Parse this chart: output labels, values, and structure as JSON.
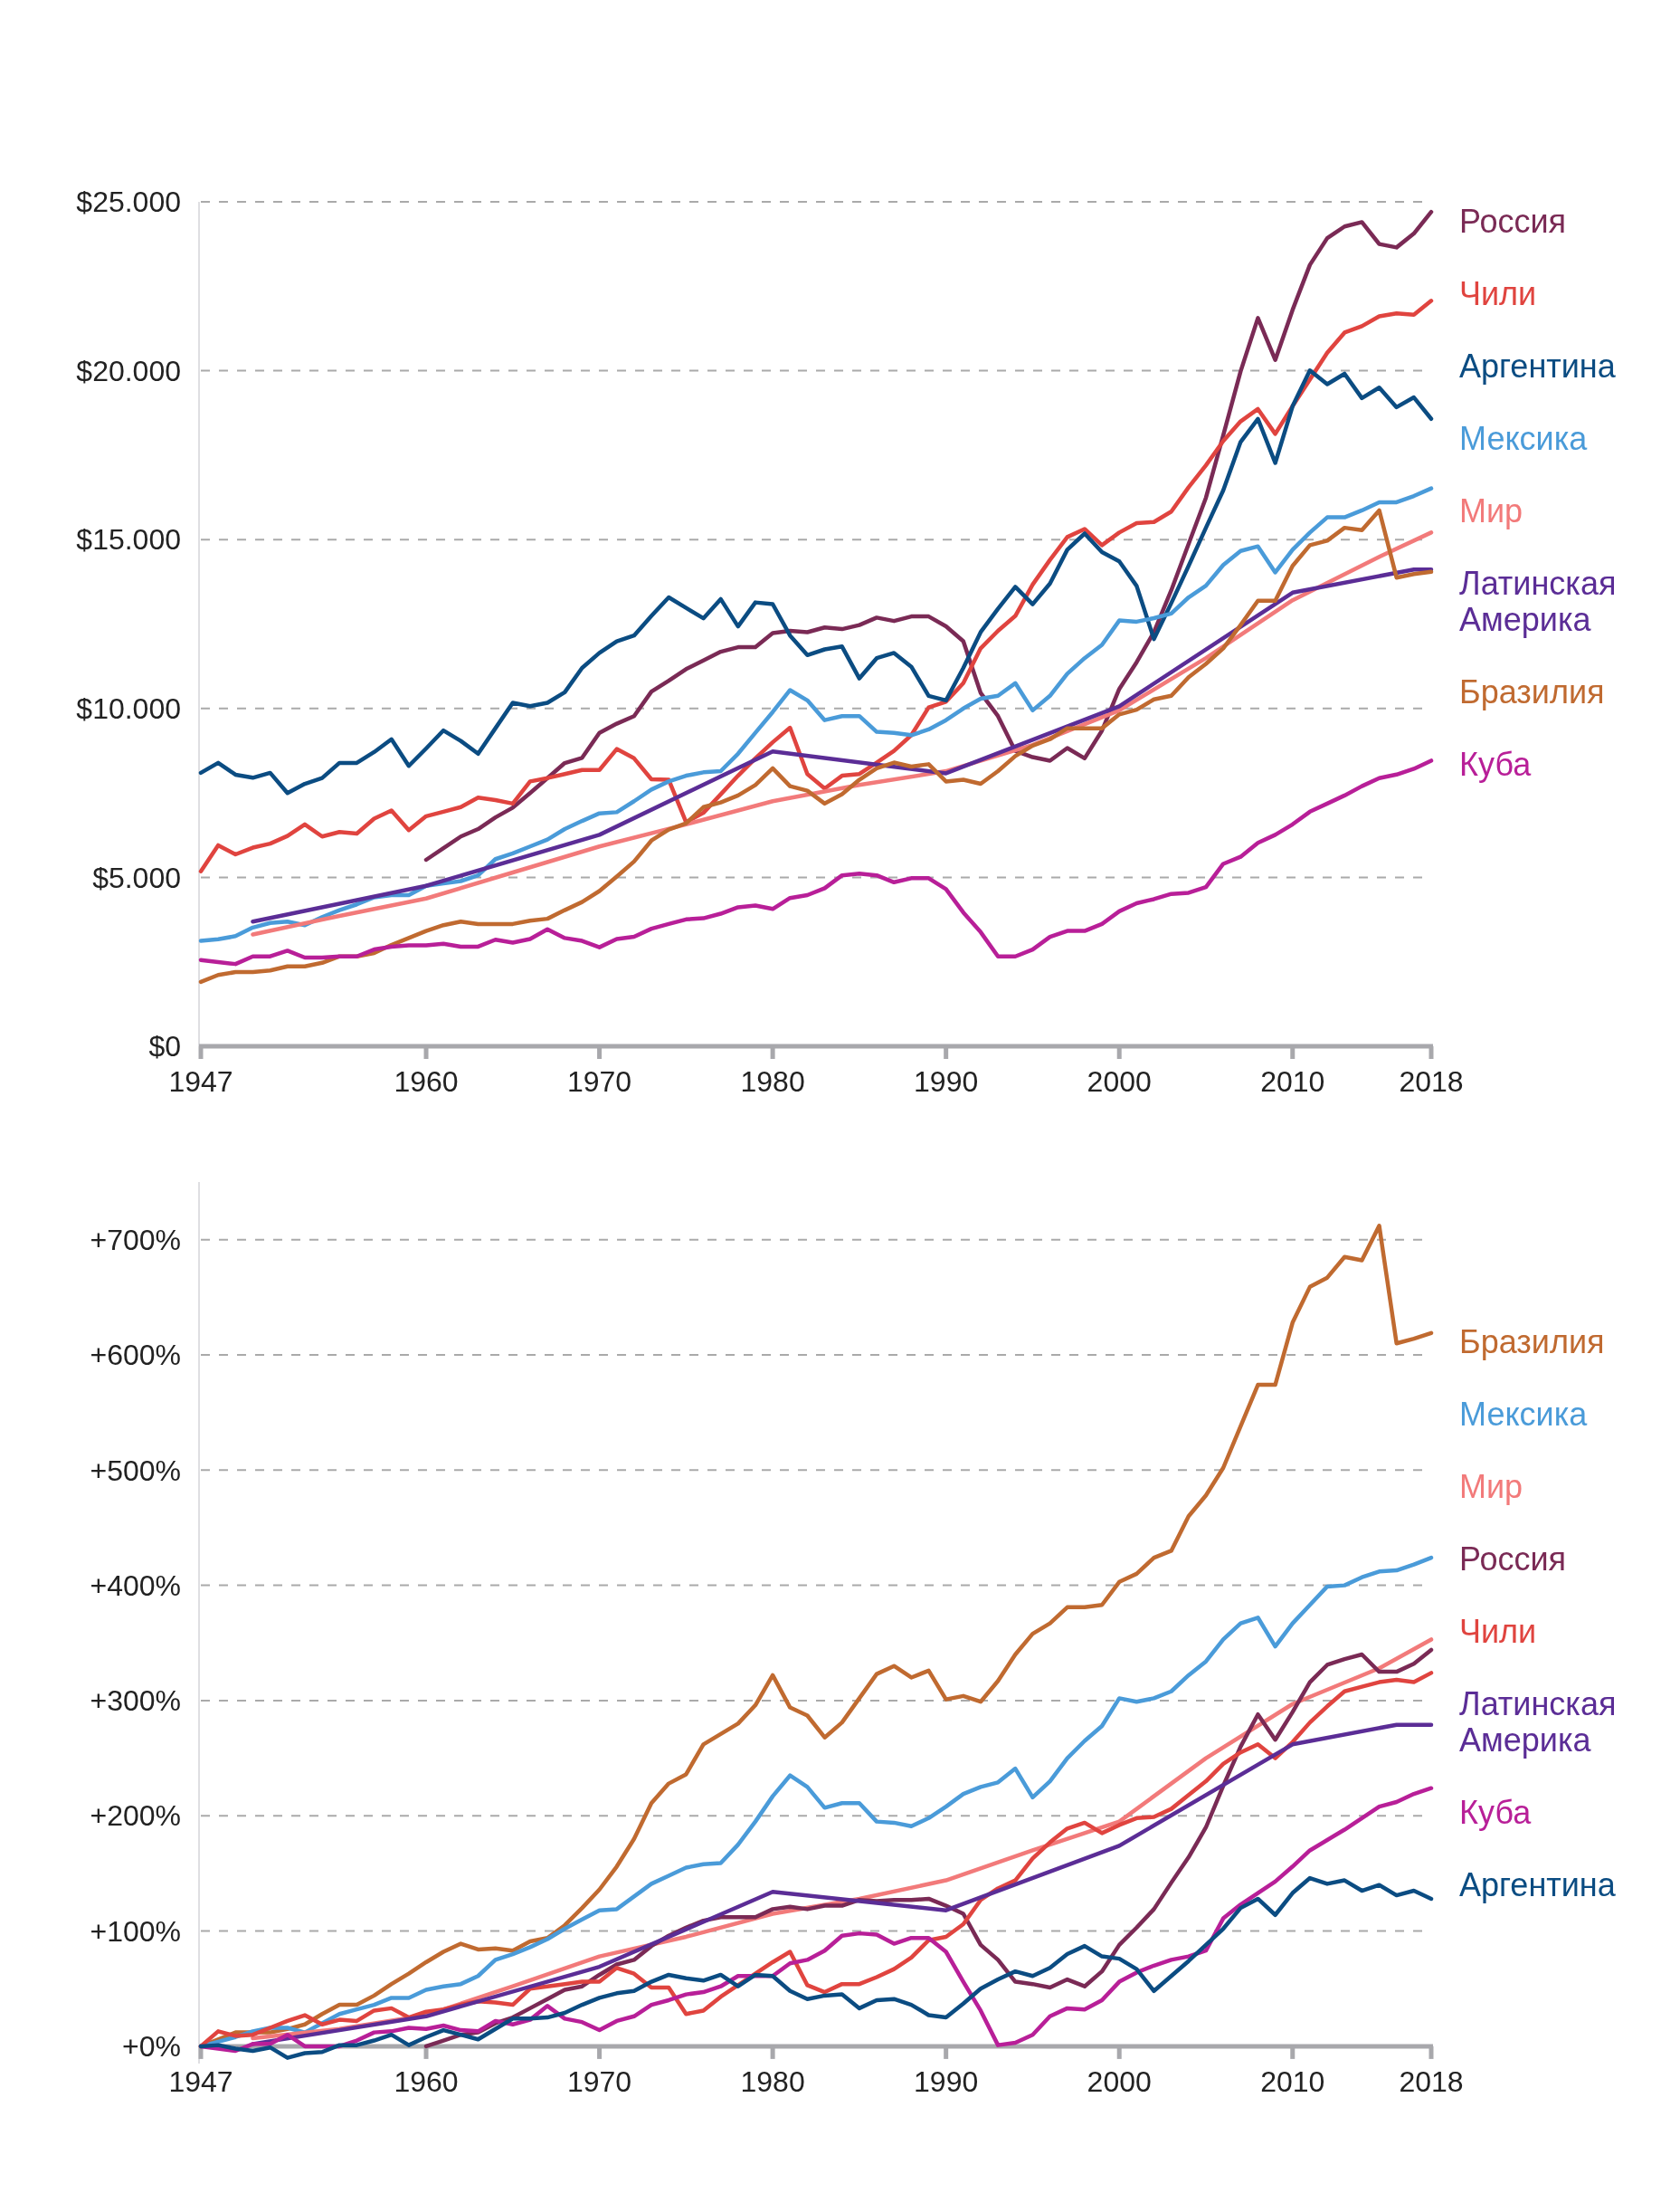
{
  "chart_data": [
    {
      "type": "line",
      "xlim": [
        1947,
        2018
      ],
      "xticks": [
        1947,
        1960,
        1970,
        1980,
        1990,
        2000,
        2010,
        2018
      ],
      "ylim": [
        0,
        25000
      ],
      "yticks": [
        {
          "value": 0,
          "label": "$0"
        },
        {
          "value": 5000,
          "label": "$5.000"
        },
        {
          "value": 10000,
          "label": "$10.000"
        },
        {
          "value": 15000,
          "label": "$15.000"
        },
        {
          "value": 20000,
          "label": "$20.000"
        },
        {
          "value": 25000,
          "label": "$25.000"
        }
      ],
      "grid": "y",
      "legend": "right",
      "x": [
        1947,
        1948,
        1949,
        1950,
        1951,
        1952,
        1953,
        1954,
        1955,
        1956,
        1957,
        1958,
        1959,
        1960,
        1961,
        1962,
        1963,
        1964,
        1965,
        1966,
        1967,
        1968,
        1969,
        1970,
        1971,
        1972,
        1973,
        1974,
        1975,
        1976,
        1977,
        1978,
        1979,
        1980,
        1981,
        1982,
        1983,
        1984,
        1985,
        1986,
        1987,
        1988,
        1989,
        1990,
        1991,
        1992,
        1993,
        1994,
        1995,
        1996,
        1997,
        1998,
        1999,
        2000,
        2001,
        2002,
        2003,
        2004,
        2005,
        2006,
        2007,
        2008,
        2009,
        2010,
        2011,
        2012,
        2013,
        2014,
        2015,
        2016,
        2017,
        2018
      ],
      "series": [
        {
          "name": "Россия",
          "color": "#7a2a55",
          "x": [
            1960,
            1961,
            1962,
            1963,
            1964,
            1965,
            1966,
            1967,
            1968,
            1969,
            1970,
            1971,
            1972,
            1973,
            1974,
            1975,
            1976,
            1977,
            1978,
            1979,
            1980,
            1981,
            1982,
            1983,
            1984,
            1985,
            1986,
            1987,
            1988,
            1989,
            1990,
            1991,
            1992,
            1993,
            1994,
            1995,
            1996,
            1997,
            1998,
            1999,
            2000,
            2001,
            2002,
            2003,
            2004,
            2005,
            2006,
            2007,
            2008,
            2009,
            2010,
            2011,
            2012,
            2013,
            2014,
            2015,
            2016,
            2017,
            2018
          ],
          "values": [
            5520,
            5865,
            6210,
            6430,
            6775,
            7065,
            7495,
            7940,
            8385,
            8540,
            9280,
            9550,
            9775,
            10500,
            10820,
            11165,
            11420,
            11680,
            11815,
            11815,
            12230,
            12300,
            12260,
            12400,
            12350,
            12470,
            12690,
            12590,
            12725,
            12725,
            12435,
            11990,
            10460,
            9775,
            8745,
            8560,
            8455,
            8830,
            8525,
            9345,
            10580,
            11370,
            12260,
            13500,
            14870,
            16240,
            18090,
            19980,
            21560,
            20320,
            21800,
            23135,
            23925,
            24270,
            24400,
            23750,
            23650,
            24060,
            24700
          ]
        },
        {
          "name": "Чили",
          "color": "#e0443f",
          "values": [
            5180,
            5950,
            5680,
            5880,
            6000,
            6225,
            6570,
            6210,
            6345,
            6295,
            6740,
            6980,
            6400,
            6810,
            6945,
            7080,
            7360,
            7290,
            7185,
            7840,
            7940,
            8060,
            8180,
            8180,
            8800,
            8525,
            7905,
            7890,
            6635,
            6910,
            7460,
            8010,
            8525,
            9000,
            9430,
            8060,
            7630,
            8010,
            8060,
            8400,
            8745,
            9210,
            10030,
            10200,
            10750,
            11780,
            12300,
            12740,
            13670,
            14400,
            15075,
            15315,
            14835,
            15210,
            15490,
            15520,
            15830,
            16550,
            17200,
            17920,
            18500,
            18865,
            18130,
            18950,
            19740,
            20530,
            21130,
            21320,
            21610,
            21695,
            21660,
            22070
          ]
        },
        {
          "name": "Аргентина",
          "color": "#0b4c82",
          "values": [
            8095,
            8390,
            8040,
            7950,
            8095,
            7495,
            7770,
            7940,
            8390,
            8390,
            8710,
            9090,
            8300,
            8815,
            9350,
            9040,
            8660,
            9415,
            10170,
            10070,
            10170,
            10480,
            11200,
            11645,
            11990,
            12160,
            12740,
            13290,
            12980,
            12670,
            13240,
            12430,
            13140,
            13090,
            12160,
            11580,
            11750,
            11835,
            10890,
            11490,
            11645,
            11235,
            10375,
            10240,
            11200,
            12260,
            12950,
            13600,
            13085,
            13700,
            14700,
            15180,
            14630,
            14355,
            13630,
            12055,
            13120,
            14220,
            15350,
            16460,
            17890,
            18575,
            17270,
            18950,
            20010,
            19600,
            19910,
            19190,
            19500,
            18920,
            19210,
            18575
          ]
        },
        {
          "name": "Мексика",
          "color": "#4a9bd9",
          "values": [
            3120,
            3170,
            3260,
            3515,
            3650,
            3690,
            3585,
            3825,
            4030,
            4200,
            4410,
            4475,
            4475,
            4750,
            4820,
            4890,
            5060,
            5540,
            5710,
            5915,
            6120,
            6430,
            6670,
            6895,
            6930,
            7255,
            7600,
            7840,
            8010,
            8110,
            8145,
            8660,
            9280,
            9895,
            10545,
            10240,
            9655,
            9775,
            9775,
            9310,
            9280,
            9210,
            9380,
            9655,
            10000,
            10290,
            10375,
            10750,
            9945,
            10375,
            11030,
            11490,
            11885,
            12605,
            12570,
            12675,
            12810,
            13290,
            13635,
            14250,
            14665,
            14800,
            14030,
            14700,
            15210,
            15660,
            15660,
            15865,
            16105,
            16105,
            16290,
            16515
          ]
        },
        {
          "name": "Мир",
          "color": "#f27a7a",
          "x": [
            1950,
            1955,
            1960,
            1965,
            1970,
            1975,
            1980,
            1985,
            1990,
            1995,
            2000,
            2005,
            2010,
            2015,
            2018
          ],
          "values": [
            3310,
            3860,
            4375,
            5145,
            5915,
            6570,
            7255,
            7735,
            8145,
            8920,
            9945,
            11490,
            13205,
            14490,
            15210
          ]
        },
        {
          "name": "Латинская Америка",
          "color": "#5b2d96",
          "x": [
            1950,
            1960,
            1970,
            1980,
            1990,
            2000,
            2010,
            2017,
            2018
          ],
          "values": [
            3690,
            4750,
            6260,
            8730,
            8080,
            10065,
            13430,
            14115,
            14115
          ]
        },
        {
          "name": "Бразилия",
          "color": "#c06a30",
          "values": [
            1905,
            2110,
            2195,
            2195,
            2245,
            2365,
            2365,
            2470,
            2660,
            2660,
            2760,
            3000,
            3205,
            3415,
            3585,
            3690,
            3620,
            3620,
            3620,
            3720,
            3775,
            4030,
            4270,
            4595,
            5025,
            5470,
            6090,
            6415,
            6600,
            7080,
            7220,
            7425,
            7735,
            8230,
            7700,
            7565,
            7185,
            7460,
            7890,
            8230,
            8400,
            8280,
            8350,
            7840,
            7890,
            7770,
            8145,
            8590,
            8900,
            9090,
            9415,
            9415,
            9415,
            9825,
            9965,
            10270,
            10375,
            10925,
            11320,
            11780,
            12470,
            13190,
            13190,
            14220,
            14835,
            14970,
            15350,
            15280,
            15865,
            13875,
            13980,
            14045
          ]
        },
        {
          "name": "Куба",
          "color": "#b81f98",
          "values": [
            2555,
            2490,
            2435,
            2660,
            2660,
            2830,
            2625,
            2625,
            2660,
            2660,
            2865,
            2950,
            2985,
            2985,
            3035,
            2950,
            2950,
            3155,
            3070,
            3175,
            3465,
            3205,
            3120,
            2930,
            3175,
            3240,
            3480,
            3620,
            3755,
            3790,
            3925,
            4115,
            4165,
            4065,
            4390,
            4475,
            4680,
            5060,
            5110,
            5060,
            4855,
            4975,
            4975,
            4650,
            3960,
            3380,
            2660,
            2660,
            2865,
            3240,
            3415,
            3415,
            3620,
            3995,
            4235,
            4355,
            4510,
            4545,
            4715,
            5400,
            5610,
            6020,
            6260,
            6570,
            6945,
            7185,
            7425,
            7700,
            7940,
            8045,
            8215,
            8455
          ]
        }
      ]
    },
    {
      "type": "line",
      "xlim": [
        1947,
        2018
      ],
      "xticks": [
        1947,
        1960,
        1970,
        1980,
        1990,
        2000,
        2010,
        2018
      ],
      "ylim": [
        -15,
        750
      ],
      "yticks": [
        {
          "value": 0,
          "label": "+0%"
        },
        {
          "value": 100,
          "label": "+100%"
        },
        {
          "value": 200,
          "label": "+200%"
        },
        {
          "value": 300,
          "label": "+300%"
        },
        {
          "value": 400,
          "label": "+400%"
        },
        {
          "value": 500,
          "label": "+500%"
        },
        {
          "value": 600,
          "label": "+600%"
        },
        {
          "value": 700,
          "label": "+700%"
        }
      ],
      "grid": "y",
      "legend": "right",
      "x": [
        1947,
        1948,
        1949,
        1950,
        1951,
        1952,
        1953,
        1954,
        1955,
        1956,
        1957,
        1958,
        1959,
        1960,
        1961,
        1962,
        1963,
        1964,
        1965,
        1966,
        1967,
        1968,
        1969,
        1970,
        1971,
        1972,
        1973,
        1974,
        1975,
        1976,
        1977,
        1978,
        1979,
        1980,
        1981,
        1982,
        1983,
        1984,
        1985,
        1986,
        1987,
        1988,
        1989,
        1990,
        1991,
        1992,
        1993,
        1994,
        1995,
        1996,
        1997,
        1998,
        1999,
        2000,
        2001,
        2002,
        2003,
        2004,
        2005,
        2006,
        2007,
        2008,
        2009,
        2010,
        2011,
        2012,
        2013,
        2014,
        2015,
        2016,
        2017,
        2018
      ],
      "series": [
        {
          "name": "Бразилия",
          "color": "#c06a30",
          "values": [
            0,
            6,
            12,
            12,
            12,
            15,
            19,
            28,
            36,
            36,
            44,
            54,
            63,
            73,
            82,
            89,
            84,
            85,
            83,
            91,
            94,
            105,
            120,
            136,
            156,
            180,
            211,
            228,
            236,
            262,
            271,
            280,
            296,
            322,
            294,
            287,
            268,
            281,
            302,
            323,
            330,
            320,
            326,
            301,
            304,
            299,
            317,
            340,
            358,
            367,
            381,
            381,
            383,
            403,
            410,
            424,
            430,
            460,
            478,
            502,
            538,
            574,
            574,
            628,
            659,
            667,
            685,
            682,
            712,
            610,
            614,
            619
          ]
        },
        {
          "name": "Мексика",
          "color": "#4a9bd9",
          "values": [
            0,
            4,
            8,
            13,
            16,
            16,
            12,
            20,
            28,
            32,
            36,
            42,
            42,
            49,
            52,
            54,
            61,
            75,
            80,
            86,
            93,
            102,
            110,
            118,
            119,
            130,
            141,
            148,
            155,
            158,
            159,
            175,
            195,
            217,
            235,
            225,
            207,
            211,
            211,
            195,
            194,
            191,
            198,
            208,
            219,
            225,
            229,
            241,
            216,
            230,
            250,
            265,
            278,
            302,
            299,
            302,
            308,
            322,
            334,
            353,
            367,
            372,
            347,
            367,
            383,
            399,
            400,
            407,
            412,
            413,
            418,
            424
          ]
        },
        {
          "name": "Мир",
          "color": "#f27a7a",
          "x": [
            1950,
            1955,
            1960,
            1965,
            1970,
            1975,
            1980,
            1985,
            1990,
            1995,
            2000,
            2005,
            2010,
            2015,
            2018
          ],
          "values": [
            7,
            15,
            27,
            52,
            78,
            95,
            115,
            128,
            144,
            170,
            195,
            250,
            297,
            328,
            353
          ]
        },
        {
          "name": "Россия",
          "color": "#7a2a55",
          "x": [
            1960,
            1961,
            1962,
            1963,
            1964,
            1965,
            1966,
            1967,
            1968,
            1969,
            1970,
            1971,
            1972,
            1973,
            1974,
            1975,
            1976,
            1977,
            1978,
            1979,
            1980,
            1981,
            1982,
            1983,
            1984,
            1985,
            1986,
            1987,
            1988,
            1989,
            1990,
            1991,
            1992,
            1993,
            1994,
            1995,
            1996,
            1997,
            1998,
            1999,
            2000,
            2001,
            2002,
            2003,
            2004,
            2005,
            2006,
            2007,
            2008,
            2009,
            2010,
            2011,
            2012,
            2013,
            2014,
            2015,
            2016,
            2017,
            2018
          ],
          "values": [
            0,
            5,
            10,
            12,
            20,
            25,
            33,
            41,
            49,
            52,
            62,
            71,
            75,
            87,
            96,
            103,
            109,
            112,
            112,
            112,
            119,
            121,
            119,
            122,
            122,
            127,
            126,
            127,
            127,
            128,
            122,
            115,
            88,
            75,
            56,
            54,
            51,
            58,
            52,
            65,
            88,
            103,
            119,
            142,
            164,
            190,
            226,
            260,
            288,
            266,
            290,
            316,
            331,
            336,
            340,
            325,
            325,
            332,
            344
          ]
        },
        {
          "name": "Чили",
          "color": "#e0443f",
          "values": [
            0,
            13,
            9,
            10,
            16,
            22,
            27,
            19,
            23,
            22,
            31,
            33,
            25,
            30,
            32,
            36,
            39,
            38,
            36,
            50,
            52,
            54,
            56,
            56,
            68,
            63,
            51,
            51,
            28,
            31,
            43,
            53,
            63,
            73,
            82,
            53,
            47,
            54,
            54,
            60,
            67,
            77,
            92,
            95,
            106,
            127,
            137,
            144,
            163,
            177,
            189,
            194,
            185,
            192,
            198,
            199,
            206,
            218,
            230,
            245,
            255,
            262,
            250,
            264,
            281,
            295,
            308,
            312,
            316,
            318,
            316,
            324
          ]
        },
        {
          "name": "Латинская Америка",
          "color": "#5b2d96",
          "x": [
            1950,
            1960,
            1970,
            1980,
            1990,
            2000,
            2010,
            2016,
            2018
          ],
          "values": [
            2,
            26,
            69,
            134,
            118,
            174,
            262,
            279,
            279
          ]
        },
        {
          "name": "Куба",
          "color": "#b81f98",
          "values": [
            0,
            -2,
            -4,
            2,
            2,
            10,
            0,
            0,
            0,
            5,
            12,
            13,
            16,
            15,
            18,
            14,
            13,
            22,
            19,
            23,
            35,
            24,
            21,
            14,
            22,
            26,
            36,
            40,
            45,
            47,
            52,
            61,
            61,
            61,
            72,
            75,
            83,
            96,
            98,
            97,
            89,
            94,
            94,
            82,
            56,
            31,
            1,
            3,
            10,
            26,
            33,
            32,
            40,
            56,
            64,
            70,
            75,
            78,
            83,
            111,
            123,
            133,
            143,
            156,
            170,
            179,
            188,
            198,
            208,
            212,
            219,
            224
          ]
        },
        {
          "name": "Аргентина",
          "color": "#0b4c82",
          "values": [
            0,
            1,
            -2,
            -4,
            -1,
            -10,
            -6,
            -5,
            1,
            1,
            5,
            10,
            1,
            8,
            14,
            10,
            6,
            15,
            24,
            24,
            25,
            29,
            36,
            42,
            46,
            48,
            56,
            62,
            59,
            57,
            62,
            52,
            62,
            61,
            48,
            41,
            44,
            45,
            33,
            40,
            41,
            36,
            27,
            25,
            37,
            50,
            58,
            65,
            61,
            68,
            80,
            87,
            78,
            76,
            67,
            48,
            61,
            74,
            88,
            102,
            120,
            128,
            114,
            133,
            146,
            141,
            144,
            135,
            140,
            131,
            135,
            128
          ]
        }
      ]
    }
  ]
}
